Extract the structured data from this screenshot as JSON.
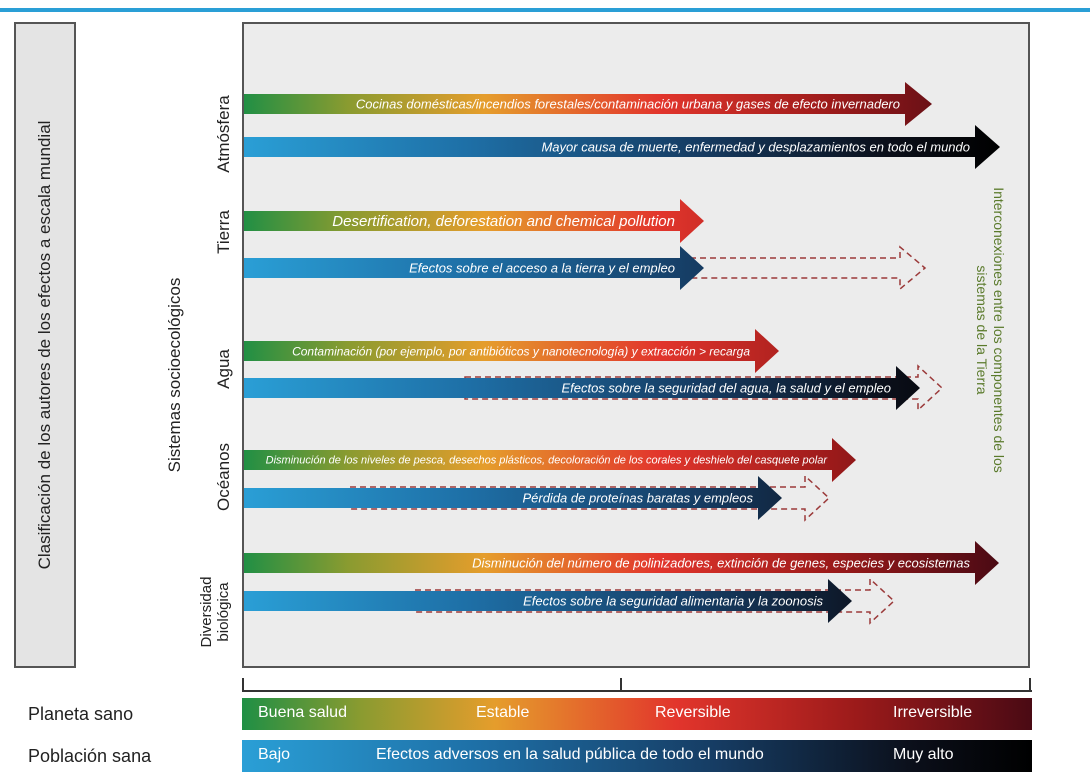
{
  "left_title": "Clasificación de los autores de los efectos a escala mundial",
  "socio_label": "Sistemas socioecológicos",
  "right_label": "Interconexiones entre los componentes de los sistemas de la Tierra",
  "categories": [
    {
      "label": "Atmósfera"
    },
    {
      "label": "Tierra"
    },
    {
      "label": "Agua"
    },
    {
      "label": "Océanos"
    },
    {
      "label_line1": "Diversidad",
      "label_line2": "biológica"
    }
  ],
  "arrows": [
    {
      "text": "Cocinas domésticas/incendios forestales/contaminación urbana y gases de efecto invernadero",
      "kind": "planet",
      "dashed": false
    },
    {
      "text": "Mayor causa de muerte, enfermedad y desplazamientos en todo el mundo",
      "kind": "people",
      "dashed": false
    },
    {
      "text": "Desertification, deforestation and chemical pollution",
      "kind": "planet",
      "dashed": false
    },
    {
      "text": "Efectos sobre el acceso a la tierra y el empleo",
      "kind": "people",
      "dashed": true
    },
    {
      "text": "Contaminación (por ejemplo, por antibióticos y nanotecnología) y extracción > recarga",
      "kind": "planet",
      "dashed": false
    },
    {
      "text": "Efectos sobre la seguridad del agua, la salud y el empleo",
      "kind": "people",
      "dashed": true
    },
    {
      "text": "Disminución de los niveles de pesca, desechos plásticos, decoloración de los corales y deshielo del casquete polar",
      "kind": "planet",
      "dashed": false
    },
    {
      "text": "Pérdida de proteínas baratas y empleos",
      "kind": "people",
      "dashed": true
    },
    {
      "text": "Disminución del número de polinizadores, extinción de genes, especies y ecosistemas",
      "kind": "planet",
      "dashed": false
    },
    {
      "text": "Efectos sobre la seguridad alimentaria y la zoonosis",
      "kind": "people",
      "dashed": true
    }
  ],
  "legend": {
    "planet_label": "Planeta sano",
    "planet_states": [
      "Buena salud",
      "Estable",
      "Reversible",
      "Irreversible"
    ],
    "population_label": "Población sana",
    "population_low": "Bajo",
    "population_middle": "Efectos adversos en la salud pública de todo el mundo",
    "population_high": "Muy alto"
  },
  "colors": {
    "top_line": "#2a9fd6",
    "right_label_text": "#5a7a2b",
    "dashed_arrow": "#9b3a3a"
  }
}
